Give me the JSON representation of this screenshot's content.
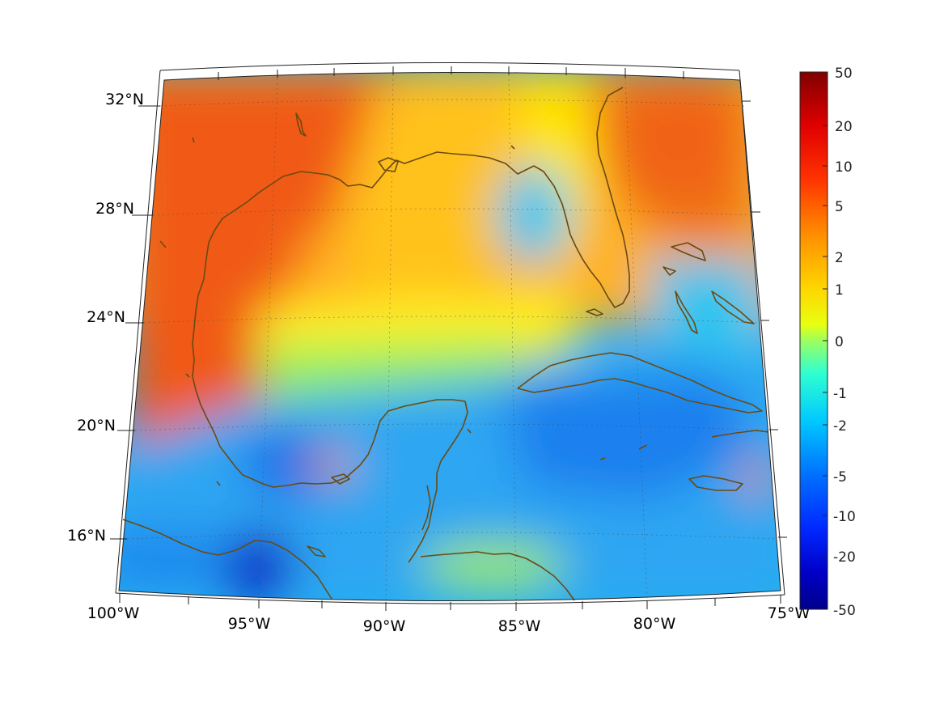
{
  "map": {
    "projection": "conic",
    "lon_range": [
      -100,
      -75
    ],
    "lat_range": [
      14,
      33
    ],
    "coastline_color": "#6b4a12",
    "colormap": "jet"
  },
  "axes": {
    "lon_ticks": [
      "100°W",
      "95°W",
      "90°W",
      "85°W",
      "80°W",
      "75°W"
    ],
    "lat_ticks": [
      "32°N",
      "28°N",
      "24°N",
      "20°N",
      "16°N"
    ]
  },
  "colorbar": {
    "labels": [
      "50",
      "20",
      "10",
      "5",
      "2",
      "1",
      "0",
      "-1",
      "-2",
      "-5",
      "-10",
      "-20",
      "-50"
    ],
    "top_color": "#800000",
    "bottom_color": "#00008b"
  },
  "field_regions": {
    "western_gulf": "#f05a12",
    "central_gulf": "#ffb81a",
    "eastern_gulf_low": "#33c8f0",
    "atlantic_ne": "#f07318",
    "caribbean": "#2e9ff2",
    "bay_of_campeche_low": "#1860e6",
    "pacific_deep_low": "#0a28c8"
  }
}
